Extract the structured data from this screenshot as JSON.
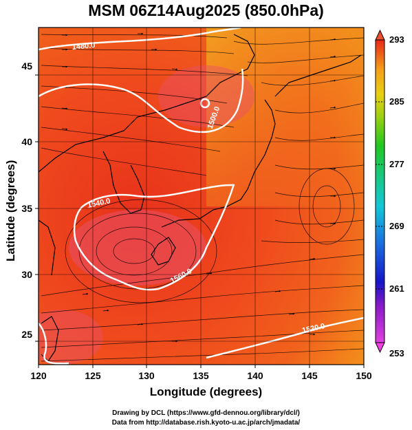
{
  "title": "MSM 06Z14Aug2025 (850.0hPa)",
  "x_axis": {
    "label": "Longitude (degrees)",
    "ticks": [
      "120",
      "125",
      "130",
      "135",
      "140",
      "145",
      "150"
    ]
  },
  "y_axis": {
    "label": "Latitude  (degrees)",
    "ticks": [
      "25",
      "30",
      "35",
      "40",
      "45"
    ]
  },
  "colorbar": {
    "ticks": [
      "293",
      "285",
      "277",
      "269",
      "261",
      "253"
    ]
  },
  "contours": [
    {
      "label": "1480.0"
    },
    {
      "label": "1500.0"
    },
    {
      "label": "1540.0"
    },
    {
      "label": "1560.0"
    },
    {
      "label": "1520.0"
    }
  ],
  "credits": {
    "line1": "Drawing by DCL (https://www.gfd-dennou.org/library/dcl/)",
    "line2": "Data from http://database.rish.kyoto-u.ac.jp/arch/jmadata/"
  }
}
